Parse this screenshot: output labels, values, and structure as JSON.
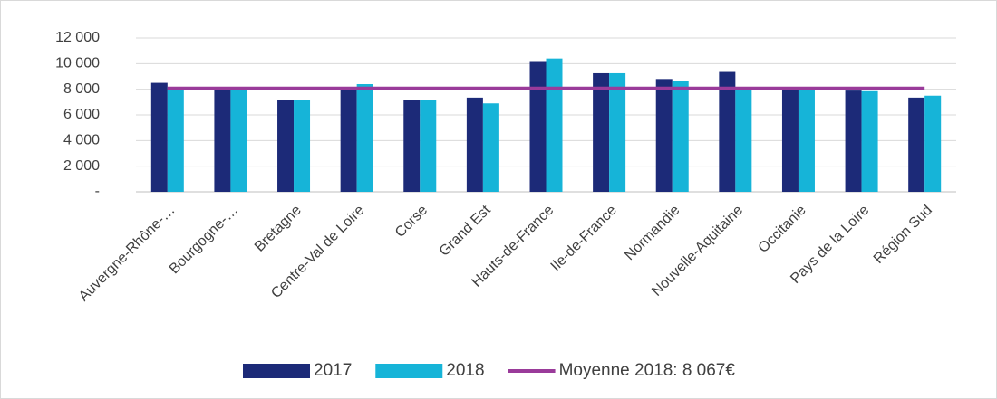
{
  "chart_data": {
    "type": "bar",
    "categories": [
      "Auvergne-Rhône-…",
      "Bourgogne-…",
      "Bretagne",
      "Centre-Val de Loire",
      "Corse",
      "Grand Est",
      "Hauts-de-France",
      "Ile-de-France",
      "Normandie",
      "Nouvelle-Aquitaine",
      "Occitanie",
      "Pays de la Loire",
      "Région Sud"
    ],
    "series": [
      {
        "name": "2017",
        "color": "#1c2a78",
        "values": [
          8500,
          7950,
          7200,
          7950,
          7200,
          7350,
          10200,
          9250,
          8800,
          9350,
          7950,
          7900,
          7350
        ]
      },
      {
        "name": "2018",
        "color": "#16b4d8",
        "values": [
          7950,
          8000,
          7200,
          8400,
          7150,
          6900,
          10400,
          9250,
          8650,
          7950,
          7950,
          7850,
          7500
        ]
      },
      {
        "name": "Moyenne 2018: 8 067€",
        "type": "line",
        "color": "#9a3b9a",
        "values": [
          8067,
          8067,
          8067,
          8067,
          8067,
          8067,
          8067,
          8067,
          8067,
          8067,
          8067,
          8067,
          8067
        ]
      }
    ],
    "ylim": [
      0,
      12000
    ],
    "yticks": [
      {
        "value": 0,
        "label": "-"
      },
      {
        "value": 2000,
        "label": "2 000"
      },
      {
        "value": 4000,
        "label": "4 000"
      },
      {
        "value": 6000,
        "label": "6 000"
      },
      {
        "value": 8000,
        "label": "8 000"
      },
      {
        "value": 10000,
        "label": "10 000"
      },
      {
        "value": 12000,
        "label": "12 000"
      }
    ],
    "grid": true,
    "legend": "bottom"
  }
}
